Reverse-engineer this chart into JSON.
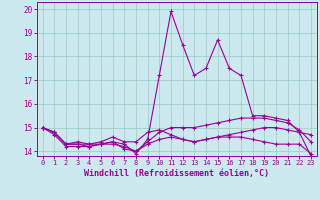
{
  "title": "",
  "xlabel": "Windchill (Refroidissement éolien,°C)",
  "ylabel": "",
  "xlim": [
    -0.5,
    23.5
  ],
  "ylim": [
    13.8,
    20.3
  ],
  "yticks": [
    14,
    15,
    16,
    17,
    18,
    19,
    20
  ],
  "xticks": [
    0,
    1,
    2,
    3,
    4,
    5,
    6,
    7,
    8,
    9,
    10,
    11,
    12,
    13,
    14,
    15,
    16,
    17,
    18,
    19,
    20,
    21,
    22,
    23
  ],
  "bg_color": "#cce9f0",
  "line_color": "#990099",
  "grid_color": "#99ccbb",
  "lines": [
    [
      15.0,
      14.8,
      14.3,
      14.3,
      14.2,
      14.3,
      14.4,
      14.3,
      13.9,
      14.5,
      17.2,
      19.9,
      18.5,
      17.2,
      17.5,
      18.7,
      17.5,
      17.2,
      15.5,
      15.5,
      15.4,
      15.3,
      14.8,
      13.8
    ],
    [
      15.0,
      14.8,
      14.3,
      14.4,
      14.3,
      14.4,
      14.6,
      14.4,
      14.4,
      14.8,
      14.9,
      14.7,
      14.5,
      14.4,
      14.5,
      14.6,
      14.7,
      14.8,
      14.9,
      15.0,
      15.0,
      14.9,
      14.8,
      14.7
    ],
    [
      15.0,
      14.8,
      14.3,
      14.3,
      14.3,
      14.3,
      14.3,
      14.2,
      14.0,
      14.3,
      14.5,
      14.6,
      14.5,
      14.4,
      14.5,
      14.6,
      14.6,
      14.6,
      14.5,
      14.4,
      14.3,
      14.3,
      14.3,
      13.9
    ],
    [
      15.0,
      14.7,
      14.2,
      14.2,
      14.2,
      14.3,
      14.4,
      14.1,
      14.0,
      14.4,
      14.8,
      15.0,
      15.0,
      15.0,
      15.1,
      15.2,
      15.3,
      15.4,
      15.4,
      15.4,
      15.3,
      15.2,
      14.9,
      14.4
    ]
  ]
}
